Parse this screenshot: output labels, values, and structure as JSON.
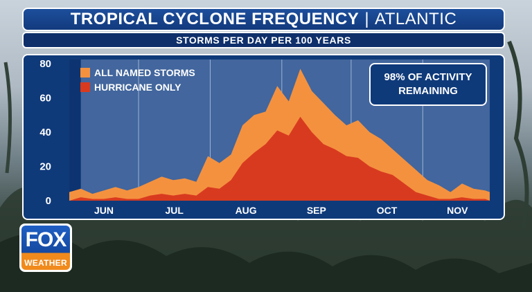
{
  "header": {
    "title": "TROPICAL CYCLONE FREQUENCY",
    "separator": "|",
    "region": "ATLANTIC",
    "subtitle": "STORMS PER DAY PER 100 YEARS"
  },
  "callout": {
    "line1": "98% OF ACTIVITY",
    "line2": "REMAINING"
  },
  "logo": {
    "top": "FOX",
    "bottom": "WEATHER"
  },
  "colors": {
    "all_named": "#f4913f",
    "hurricane": "#d83a1f",
    "panel": "#0f3a7a",
    "elapsed_shade": "#0d3470",
    "remaining_shade": "#4b6fa3"
  },
  "chart_data": {
    "type": "area",
    "x_start": "JUN 1",
    "x_end": "NOV 30",
    "categories": [
      "JUN",
      "JUL",
      "AUG",
      "SEP",
      "OCT",
      "NOV"
    ],
    "ylim": [
      0,
      80
    ],
    "yticks": [
      0,
      20,
      40,
      60,
      80
    ],
    "grid": "vertical month dividers",
    "legend_position": "top-left",
    "series": [
      {
        "name": "ALL NAMED STORMS",
        "x": [
          "Jun 1",
          "Jun 6",
          "Jun 11",
          "Jun 16",
          "Jun 21",
          "Jun 26",
          "Jul 1",
          "Jul 6",
          "Jul 11",
          "Jul 16",
          "Jul 21",
          "Jul 26",
          "Jul 31",
          "Aug 5",
          "Aug 10",
          "Aug 15",
          "Aug 20",
          "Aug 25",
          "Aug 30",
          "Sep 4",
          "Sep 9",
          "Sep 14",
          "Sep 19",
          "Sep 24",
          "Sep 29",
          "Oct 4",
          "Oct 9",
          "Oct 14",
          "Oct 19",
          "Oct 24",
          "Oct 29",
          "Nov 3",
          "Nov 8",
          "Nov 13",
          "Nov 18",
          "Nov 23",
          "Nov 28",
          "Nov 30"
        ],
        "values": [
          5,
          7,
          4,
          6,
          8,
          6,
          8,
          11,
          14,
          12,
          13,
          11,
          26,
          22,
          27,
          44,
          50,
          52,
          67,
          58,
          77,
          64,
          57,
          50,
          44,
          47,
          40,
          36,
          30,
          24,
          18,
          12,
          9,
          5,
          10,
          7,
          6,
          5
        ]
      },
      {
        "name": "HURRICANE ONLY",
        "x": [
          "Jun 1",
          "Jun 6",
          "Jun 11",
          "Jun 16",
          "Jun 21",
          "Jun 26",
          "Jul 1",
          "Jul 6",
          "Jul 11",
          "Jul 16",
          "Jul 21",
          "Jul 26",
          "Jul 31",
          "Aug 5",
          "Aug 10",
          "Aug 15",
          "Aug 20",
          "Aug 25",
          "Aug 30",
          "Sep 4",
          "Sep 9",
          "Sep 14",
          "Sep 19",
          "Sep 24",
          "Sep 29",
          "Oct 4",
          "Oct 9",
          "Oct 14",
          "Oct 19",
          "Oct 24",
          "Oct 29",
          "Nov 3",
          "Nov 8",
          "Nov 13",
          "Nov 18",
          "Nov 23",
          "Nov 28",
          "Nov 30"
        ],
        "values": [
          0,
          2,
          1,
          1,
          2,
          1,
          1,
          3,
          4,
          3,
          4,
          3,
          8,
          7,
          12,
          22,
          28,
          33,
          41,
          38,
          49,
          40,
          33,
          30,
          26,
          25,
          20,
          17,
          15,
          10,
          5,
          3,
          1,
          1,
          2,
          1,
          1,
          0
        ]
      }
    ],
    "elapsed_region_end": "Jun 6"
  }
}
